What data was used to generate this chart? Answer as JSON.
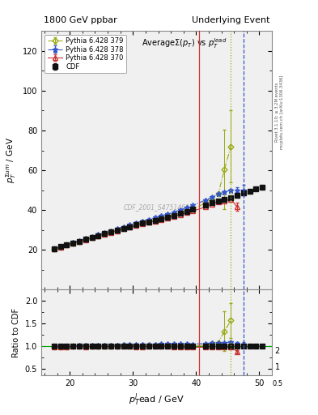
{
  "title_left": "1800 GeV ppbar",
  "title_right": "Underlying Event",
  "plot_title": "Average$\\Sigma(p_T)$ vs $p_T^{lead}$",
  "ylabel_main": "$p_T^{\\Sigma um}$ / GeV",
  "ylabel_ratio": "Ratio to CDF",
  "xlabel": "$p_T^{l}$ead / GeV",
  "watermark": "CDF_2001_S4751469",
  "right_label1": "Rivet 3.1.10; ≥ 3.2M events",
  "right_label2": "mcplots.cern.ch [arXiv:1306.3436]",
  "xlim": [
    15.5,
    52.0
  ],
  "ylim_main": [
    0.0,
    130.0
  ],
  "ylim_ratio": [
    0.35,
    2.25
  ],
  "vline_red": 40.5,
  "vline_green": 45.5,
  "vline_blue": 47.5,
  "cdf_x": [
    17.5,
    18.5,
    19.5,
    20.5,
    21.5,
    22.5,
    23.5,
    24.5,
    25.5,
    26.5,
    27.5,
    28.5,
    29.5,
    30.5,
    31.5,
    32.5,
    33.5,
    34.5,
    35.5,
    36.5,
    37.5,
    38.5,
    39.5,
    41.5,
    42.5,
    43.5,
    44.5,
    45.5,
    46.5,
    47.5,
    48.5,
    49.5,
    50.5
  ],
  "cdf_y": [
    20.5,
    21.5,
    22.5,
    23.4,
    24.3,
    25.3,
    26.2,
    27.1,
    28.0,
    28.9,
    29.8,
    30.7,
    31.6,
    32.5,
    33.3,
    34.0,
    34.8,
    35.5,
    36.3,
    37.2,
    38.2,
    39.2,
    40.5,
    42.5,
    43.5,
    44.5,
    45.5,
    46.0,
    47.5,
    48.5,
    49.5,
    50.5,
    51.5
  ],
  "cdf_yerr": [
    0.4,
    0.4,
    0.4,
    0.4,
    0.4,
    0.4,
    0.4,
    0.4,
    0.4,
    0.4,
    0.4,
    0.4,
    0.4,
    0.4,
    0.4,
    0.4,
    0.4,
    0.4,
    0.4,
    0.4,
    0.4,
    0.4,
    0.5,
    0.5,
    0.5,
    0.5,
    0.5,
    0.5,
    0.5,
    0.5,
    0.5,
    0.5,
    0.5
  ],
  "p370_x": [
    17.5,
    18.5,
    19.5,
    20.5,
    21.5,
    22.5,
    23.5,
    24.5,
    25.5,
    26.5,
    27.5,
    28.5,
    29.5,
    30.5,
    31.5,
    32.5,
    33.5,
    34.5,
    35.5,
    36.5,
    37.5,
    38.5,
    39.5,
    41.5,
    42.5,
    43.5,
    44.5,
    45.5,
    46.5
  ],
  "p370_y": [
    20.3,
    21.3,
    22.3,
    23.2,
    24.1,
    25.0,
    26.0,
    26.9,
    27.8,
    28.7,
    29.6,
    30.5,
    31.4,
    32.2,
    33.0,
    33.8,
    34.5,
    35.3,
    36.0,
    36.8,
    37.7,
    38.6,
    39.5,
    41.5,
    43.0,
    44.0,
    44.5,
    45.5,
    41.5
  ],
  "p370_yerr": [
    0.2,
    0.2,
    0.2,
    0.2,
    0.2,
    0.2,
    0.2,
    0.2,
    0.2,
    0.2,
    0.2,
    0.2,
    0.2,
    0.2,
    0.2,
    0.2,
    0.2,
    0.2,
    0.2,
    0.2,
    0.2,
    0.2,
    0.2,
    0.2,
    0.2,
    0.2,
    0.2,
    0.3,
    2.0
  ],
  "p378_x": [
    17.5,
    18.5,
    19.5,
    20.5,
    21.5,
    22.5,
    23.5,
    24.5,
    25.5,
    26.5,
    27.5,
    28.5,
    29.5,
    30.5,
    31.5,
    32.5,
    33.5,
    34.5,
    35.5,
    36.5,
    37.5,
    38.5,
    39.5,
    41.5,
    42.5,
    43.5,
    44.5,
    45.5,
    46.5,
    47.5
  ],
  "p378_y": [
    20.5,
    21.5,
    22.6,
    23.6,
    24.6,
    25.6,
    26.6,
    27.6,
    28.6,
    29.6,
    30.6,
    31.6,
    32.6,
    33.5,
    34.4,
    35.3,
    36.2,
    37.1,
    38.0,
    39.0,
    40.1,
    41.2,
    42.3,
    45.0,
    46.5,
    48.0,
    49.0,
    50.0,
    50.0,
    50.0
  ],
  "p378_yerr": [
    0.2,
    0.2,
    0.2,
    0.2,
    0.2,
    0.2,
    0.2,
    0.2,
    0.2,
    0.2,
    0.2,
    0.2,
    0.2,
    0.2,
    0.2,
    0.2,
    0.2,
    0.2,
    0.2,
    0.3,
    0.3,
    0.3,
    0.3,
    0.3,
    0.3,
    0.3,
    0.4,
    0.8,
    1.5,
    2.5
  ],
  "p379_x": [
    17.5,
    18.5,
    19.5,
    20.5,
    21.5,
    22.5,
    23.5,
    24.5,
    25.5,
    26.5,
    27.5,
    28.5,
    29.5,
    30.5,
    31.5,
    32.5,
    33.5,
    34.5,
    35.5,
    36.5,
    37.5,
    38.5,
    39.5,
    41.5,
    42.5,
    43.5,
    44.5,
    45.5
  ],
  "p379_y": [
    20.3,
    21.3,
    22.3,
    23.3,
    24.3,
    25.2,
    26.1,
    27.1,
    28.0,
    29.0,
    30.0,
    31.0,
    31.9,
    32.8,
    33.6,
    34.4,
    35.2,
    36.0,
    36.7,
    37.5,
    38.5,
    39.5,
    40.5,
    43.5,
    45.5,
    48.0,
    60.5,
    72.0
  ],
  "p379_yerr": [
    0.2,
    0.2,
    0.2,
    0.2,
    0.2,
    0.2,
    0.2,
    0.2,
    0.2,
    0.2,
    0.2,
    0.2,
    0.2,
    0.2,
    0.2,
    0.2,
    0.2,
    0.2,
    0.2,
    0.2,
    0.2,
    0.2,
    0.2,
    0.2,
    0.3,
    0.5,
    20.0,
    18.0
  ],
  "color_cdf": "#111111",
  "color_370": "#cc3333",
  "color_378": "#3355cc",
  "color_379": "#99aa11",
  "bg_color": "#f0f0f0",
  "yticks_main": [
    20,
    40,
    60,
    80,
    100,
    120
  ],
  "yticks_ratio": [
    0.5,
    1.0,
    1.5,
    2.0
  ],
  "xticks_major": [
    20,
    30,
    40,
    50
  ]
}
